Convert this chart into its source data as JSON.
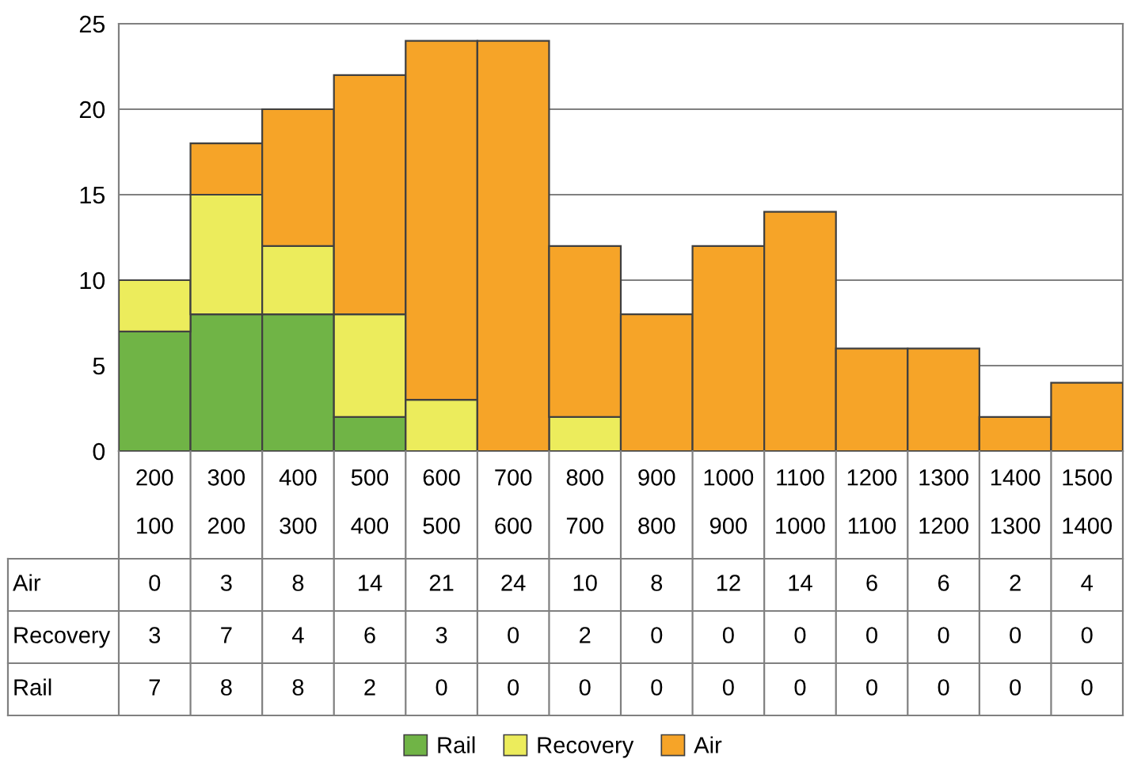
{
  "chart_data": {
    "type": "bar",
    "stacked": true,
    "categories": [
      "200\n100",
      "300\n200",
      "400\n300",
      "500\n400",
      "600\n500",
      "700\n600",
      "800\n700",
      "900\n800",
      "1000\n900",
      "1100\n1000",
      "1200\n1100",
      "1300\n1200",
      "1400\n1300",
      "1500\n1400"
    ],
    "series": [
      {
        "name": "Rail",
        "color": "#70b446",
        "values": [
          7,
          8,
          8,
          2,
          0,
          0,
          0,
          0,
          0,
          0,
          0,
          0,
          0,
          0
        ]
      },
      {
        "name": "Recovery",
        "color": "#ecec5c",
        "values": [
          3,
          7,
          4,
          6,
          3,
          0,
          2,
          0,
          0,
          0,
          0,
          0,
          0,
          0
        ]
      },
      {
        "name": "Air",
        "color": "#f6a428",
        "values": [
          0,
          3,
          8,
          14,
          21,
          24,
          10,
          8,
          12,
          14,
          6,
          6,
          2,
          4
        ]
      }
    ],
    "ylim": [
      0,
      25
    ],
    "yticks": [
      0,
      5,
      10,
      15,
      20,
      25
    ],
    "grid": "y",
    "legend": "bottom",
    "data_labels": true
  }
}
